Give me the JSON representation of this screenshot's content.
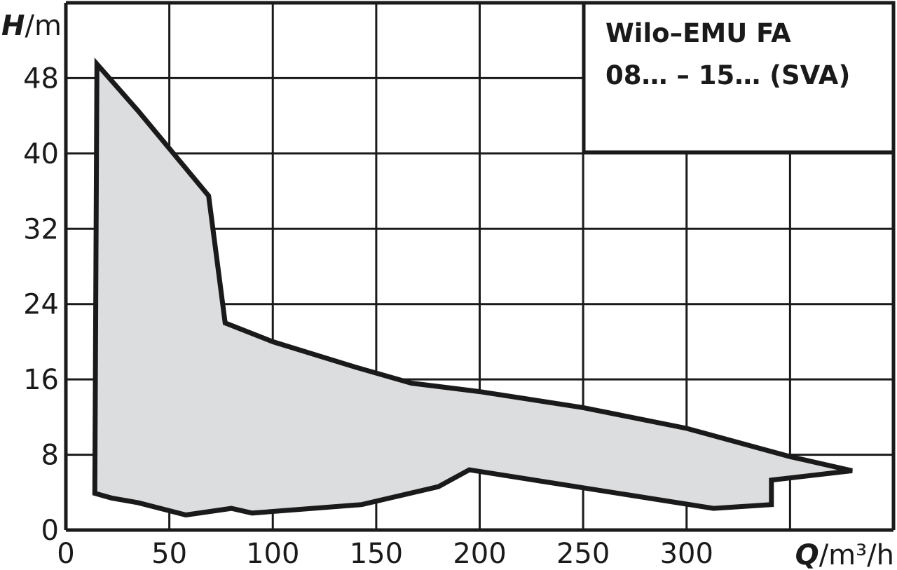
{
  "chart_data": {
    "type": "area",
    "title_lines": [
      "Wilo–EMU FA",
      "08… – 15… (SVA)"
    ],
    "xlabel": {
      "symbol": "Q",
      "unit": "/m³/h"
    },
    "ylabel": {
      "symbol": "H",
      "unit": "/m"
    },
    "xlim": [
      0,
      400
    ],
    "ylim": [
      0,
      56
    ],
    "x_ticks": [
      0,
      50,
      100,
      150,
      200,
      250,
      300
    ],
    "y_ticks": [
      0,
      8,
      16,
      24,
      32,
      40,
      48
    ],
    "grid": true,
    "colors": {
      "fill": "#dcdddf",
      "outline": "#1a1a1a",
      "grid": "#1a1a1a"
    },
    "series": [
      {
        "polygon": [
          {
            "x": 15,
            "y": 49.5
          },
          {
            "x": 35,
            "y": 44.5
          },
          {
            "x": 69,
            "y": 35.5
          },
          {
            "x": 77,
            "y": 22.0
          },
          {
            "x": 100,
            "y": 20.0
          },
          {
            "x": 140,
            "y": 17.3
          },
          {
            "x": 167,
            "y": 15.6
          },
          {
            "x": 200,
            "y": 14.7
          },
          {
            "x": 250,
            "y": 13.0
          },
          {
            "x": 300,
            "y": 10.8
          },
          {
            "x": 350,
            "y": 7.8
          },
          {
            "x": 380,
            "y": 6.3
          },
          {
            "x": 341,
            "y": 5.3
          },
          {
            "x": 341,
            "y": 2.7
          },
          {
            "x": 313,
            "y": 2.3
          },
          {
            "x": 195,
            "y": 6.4
          },
          {
            "x": 180,
            "y": 4.6
          },
          {
            "x": 143,
            "y": 2.7
          },
          {
            "x": 90,
            "y": 1.8
          },
          {
            "x": 80,
            "y": 2.3
          },
          {
            "x": 58,
            "y": 1.6
          },
          {
            "x": 35,
            "y": 2.9
          },
          {
            "x": 22,
            "y": 3.4
          },
          {
            "x": 14,
            "y": 3.9
          }
        ]
      }
    ]
  }
}
